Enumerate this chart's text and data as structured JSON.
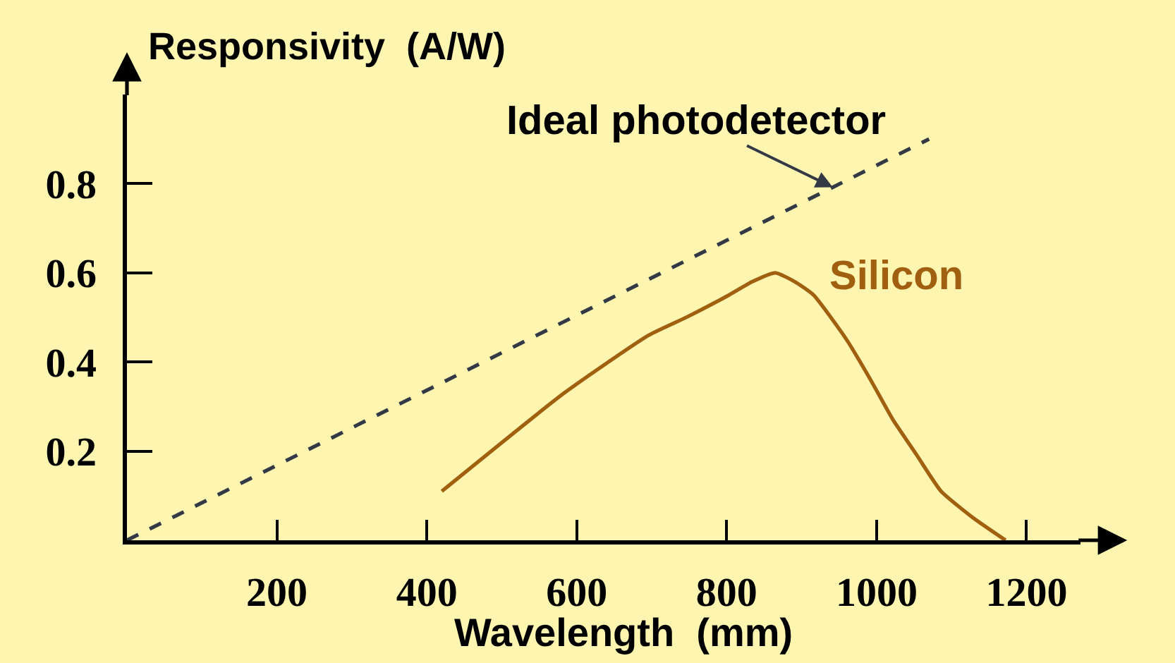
{
  "chart_data": {
    "type": "line",
    "xlabel": "Wavelength  (mm)",
    "ylabel": "Responsivity  (A/W)",
    "xlim": [
      0,
      1272
    ],
    "ylim": [
      0,
      1.0
    ],
    "xticks": [
      200,
      400,
      600,
      800,
      1000,
      1200
    ],
    "yticks": [
      0.2,
      0.4,
      0.6,
      0.8
    ],
    "grid": false,
    "legend": false,
    "series": [
      {
        "name": "Ideal photodetector",
        "color": "#343a45",
        "line_style": "dashed",
        "x": [
          0,
          1070
        ],
        "values": [
          0,
          0.9
        ]
      },
      {
        "name": "Silicon",
        "color": "#a0600f",
        "line_style": "solid",
        "x": [
          420,
          583,
          696,
          746,
          803,
          834,
          865,
          891,
          916,
          960,
          992,
          1022,
          1054,
          1086,
          1129,
          1172
        ],
        "values": [
          0.11,
          0.33,
          0.46,
          0.5,
          0.55,
          0.58,
          0.6,
          0.58,
          0.55,
          0.45,
          0.36,
          0.27,
          0.19,
          0.11,
          0.05,
          0
        ]
      }
    ]
  }
}
